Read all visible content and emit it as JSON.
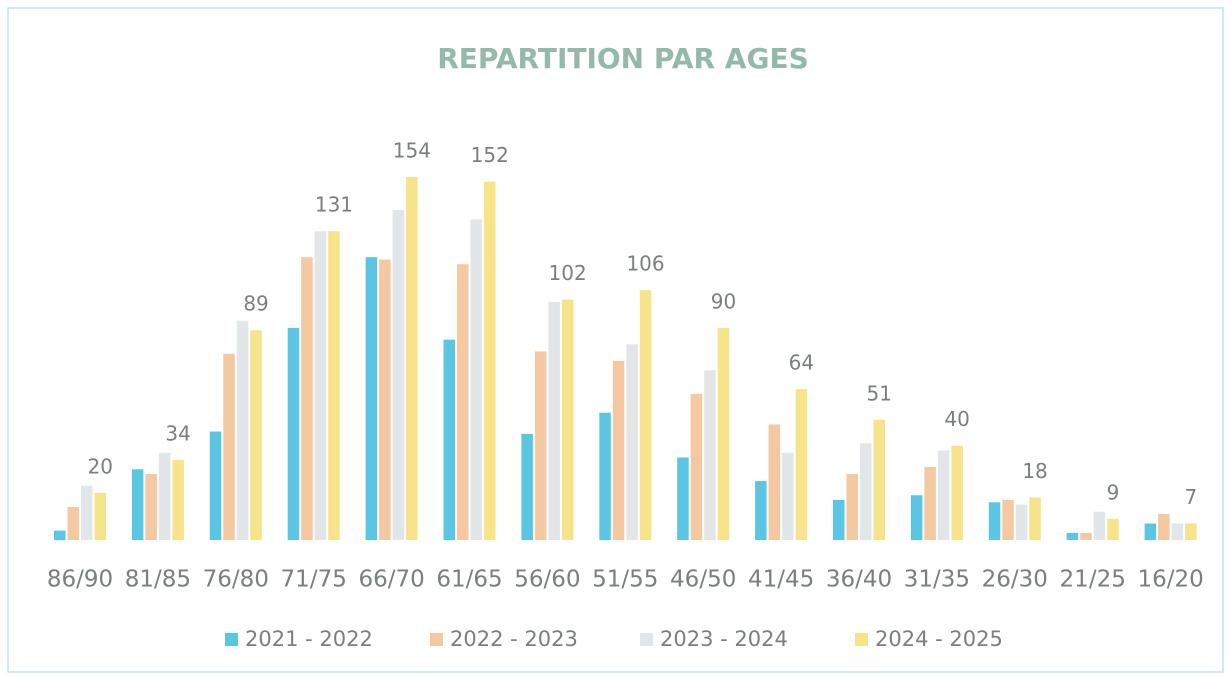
{
  "chart_data": {
    "type": "bar",
    "title": "REPARTITION PAR AGES",
    "categories": [
      "86/90",
      "81/85",
      "76/80",
      "71/75",
      "66/70",
      "61/65",
      "56/60",
      "51/55",
      "46/50",
      "41/45",
      "36/40",
      "31/35",
      "26/30",
      "21/25",
      "16/20"
    ],
    "series": [
      {
        "name": "2021 - 2022",
        "color": "#5bc6e4",
        "values": [
          4,
          30,
          46,
          90,
          120,
          85,
          45,
          54,
          35,
          25,
          17,
          19,
          16,
          3,
          7
        ]
      },
      {
        "name": "2022 - 2023",
        "color": "#f4c8a0",
        "values": [
          14,
          28,
          79,
          120,
          119,
          117,
          80,
          76,
          62,
          49,
          28,
          31,
          17,
          3,
          11
        ]
      },
      {
        "name": "2023 - 2024",
        "color": "#e2e6e8",
        "values": [
          23,
          37,
          93,
          131,
          140,
          136,
          101,
          83,
          72,
          37,
          41,
          38,
          15,
          12,
          7
        ]
      },
      {
        "name": "2024 - 2025",
        "color": "#f6e38a",
        "values": [
          20,
          34,
          89,
          131,
          154,
          152,
          102,
          106,
          90,
          64,
          51,
          40,
          18,
          9,
          7
        ]
      }
    ],
    "legend": "bottom"
  }
}
